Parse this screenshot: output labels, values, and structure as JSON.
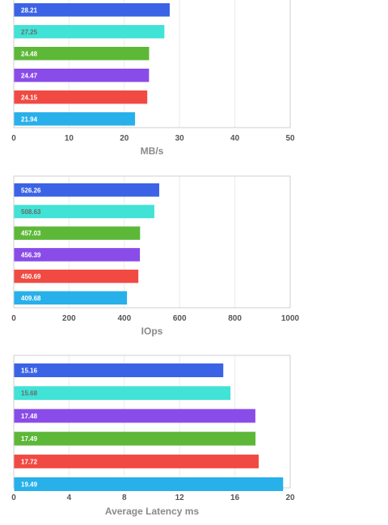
{
  "colors": {
    "blue": "#3b63e6",
    "turquoise": "#40e3d6",
    "green": "#5db838",
    "purple": "#8a4ce8",
    "red": "#f04a43",
    "sky": "#28b0ea"
  },
  "chart_data": [
    {
      "type": "bar",
      "orientation": "horizontal",
      "xlabel": "MB/s",
      "xlim": [
        0,
        50
      ],
      "xticks": [
        "0",
        "10",
        "20",
        "30",
        "40",
        "50"
      ],
      "grid": true,
      "values": [
        28.21,
        27.25,
        24.48,
        24.47,
        24.15,
        21.94
      ],
      "labels": [
        "28.21",
        "27.25",
        "24.48",
        "24.47",
        "24.15",
        "21.94"
      ],
      "colors": [
        "blue",
        "turquoise",
        "green",
        "purple",
        "red",
        "sky"
      ]
    },
    {
      "type": "bar",
      "orientation": "horizontal",
      "xlabel": "IOps",
      "xlim": [
        0,
        1000
      ],
      "xticks": [
        "0",
        "200",
        "400",
        "600",
        "800",
        "1000"
      ],
      "grid": true,
      "values": [
        526.26,
        508.63,
        457.03,
        456.39,
        450.69,
        409.68
      ],
      "labels": [
        "526.26",
        "508.63",
        "457.03",
        "456.39",
        "450.69",
        "409.68"
      ],
      "colors": [
        "blue",
        "turquoise",
        "green",
        "purple",
        "red",
        "sky"
      ]
    },
    {
      "type": "bar",
      "orientation": "horizontal",
      "xlabel": "Average Latency ms",
      "xlim": [
        0,
        20
      ],
      "xticks": [
        "0",
        "4",
        "8",
        "12",
        "16",
        "20"
      ],
      "grid": true,
      "values": [
        15.16,
        15.68,
        17.48,
        17.49,
        17.72,
        19.49
      ],
      "labels": [
        "15.16",
        "15.68",
        "17.48",
        "17.49",
        "17.72",
        "19.49"
      ],
      "colors": [
        "blue",
        "turquoise",
        "purple",
        "green",
        "red",
        "sky"
      ]
    }
  ]
}
